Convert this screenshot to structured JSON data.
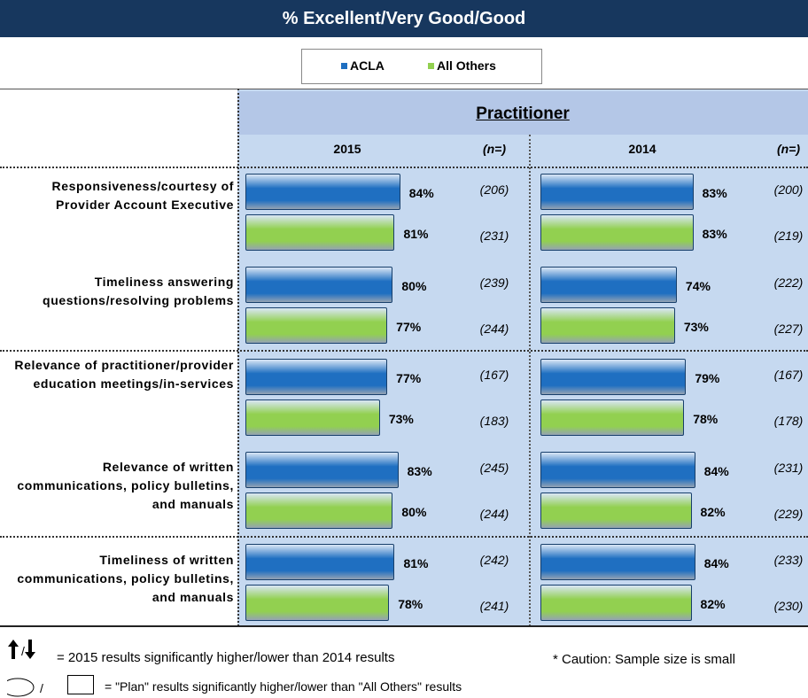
{
  "chart_data": {
    "type": "bar",
    "orientation": "horizontal",
    "title": "% Excellent/Very Good/Good",
    "group_title": "Practitioner",
    "categories": [
      "Responsiveness/courtesy of Provider Account Executive",
      "Timeliness answering questions/resolving problems",
      "Relevance of practitioner/provider education meetings/in-services",
      "Relevance of written communications, policy bulletins, and manuals",
      "Timeliness of written communications, policy bulletins, and manuals"
    ],
    "legend": [
      "ACLA",
      "All Others"
    ],
    "panels": [
      {
        "name": "2015",
        "n_header": "(n=)",
        "series": [
          {
            "name": "ACLA",
            "color": "#1f6fc1",
            "values": [
              84,
              80,
              77,
              83,
              81
            ],
            "value_labels": [
              "84%",
              "80%",
              "77%",
              "83%",
              "81%"
            ],
            "n": [
              206,
              239,
              167,
              245,
              242
            ],
            "n_labels": [
              "(206)",
              "(239)",
              "(167)",
              "(245)",
              "(242)"
            ]
          },
          {
            "name": "All Others",
            "color": "#92d050",
            "values": [
              81,
              77,
              73,
              80,
              78
            ],
            "value_labels": [
              "81%",
              "77%",
              "73%",
              "80%",
              "78%"
            ],
            "n": [
              231,
              244,
              183,
              244,
              241
            ],
            "n_labels": [
              "(231)",
              "(244)",
              "(183)",
              "(244)",
              "(241)"
            ]
          }
        ]
      },
      {
        "name": "2014",
        "n_header": "(n=)",
        "series": [
          {
            "name": "ACLA",
            "color": "#1f6fc1",
            "values": [
              83,
              74,
              79,
              84,
              84
            ],
            "value_labels": [
              "83%",
              "74%",
              "79%",
              "84%",
              "84%"
            ],
            "n": [
              200,
              222,
              167,
              231,
              233
            ],
            "n_labels": [
              "(200)",
              "(222)",
              "(167)",
              "(231)",
              "(233)"
            ]
          },
          {
            "name": "All Others",
            "color": "#92d050",
            "values": [
              83,
              73,
              78,
              82,
              82
            ],
            "value_labels": [
              "83%",
              "73%",
              "78%",
              "82%",
              "82%"
            ],
            "n": [
              219,
              227,
              178,
              229,
              230
            ],
            "n_labels": [
              "(219)",
              "(227)",
              "(178)",
              "(229)",
              "(230)"
            ]
          }
        ]
      }
    ],
    "footnotes": [
      "= 2015 results significantly higher/lower than 2014 results",
      "* Caution: Sample size is small",
      "= \"Plan\" results significantly higher/lower than \"All Others\" results"
    ]
  }
}
